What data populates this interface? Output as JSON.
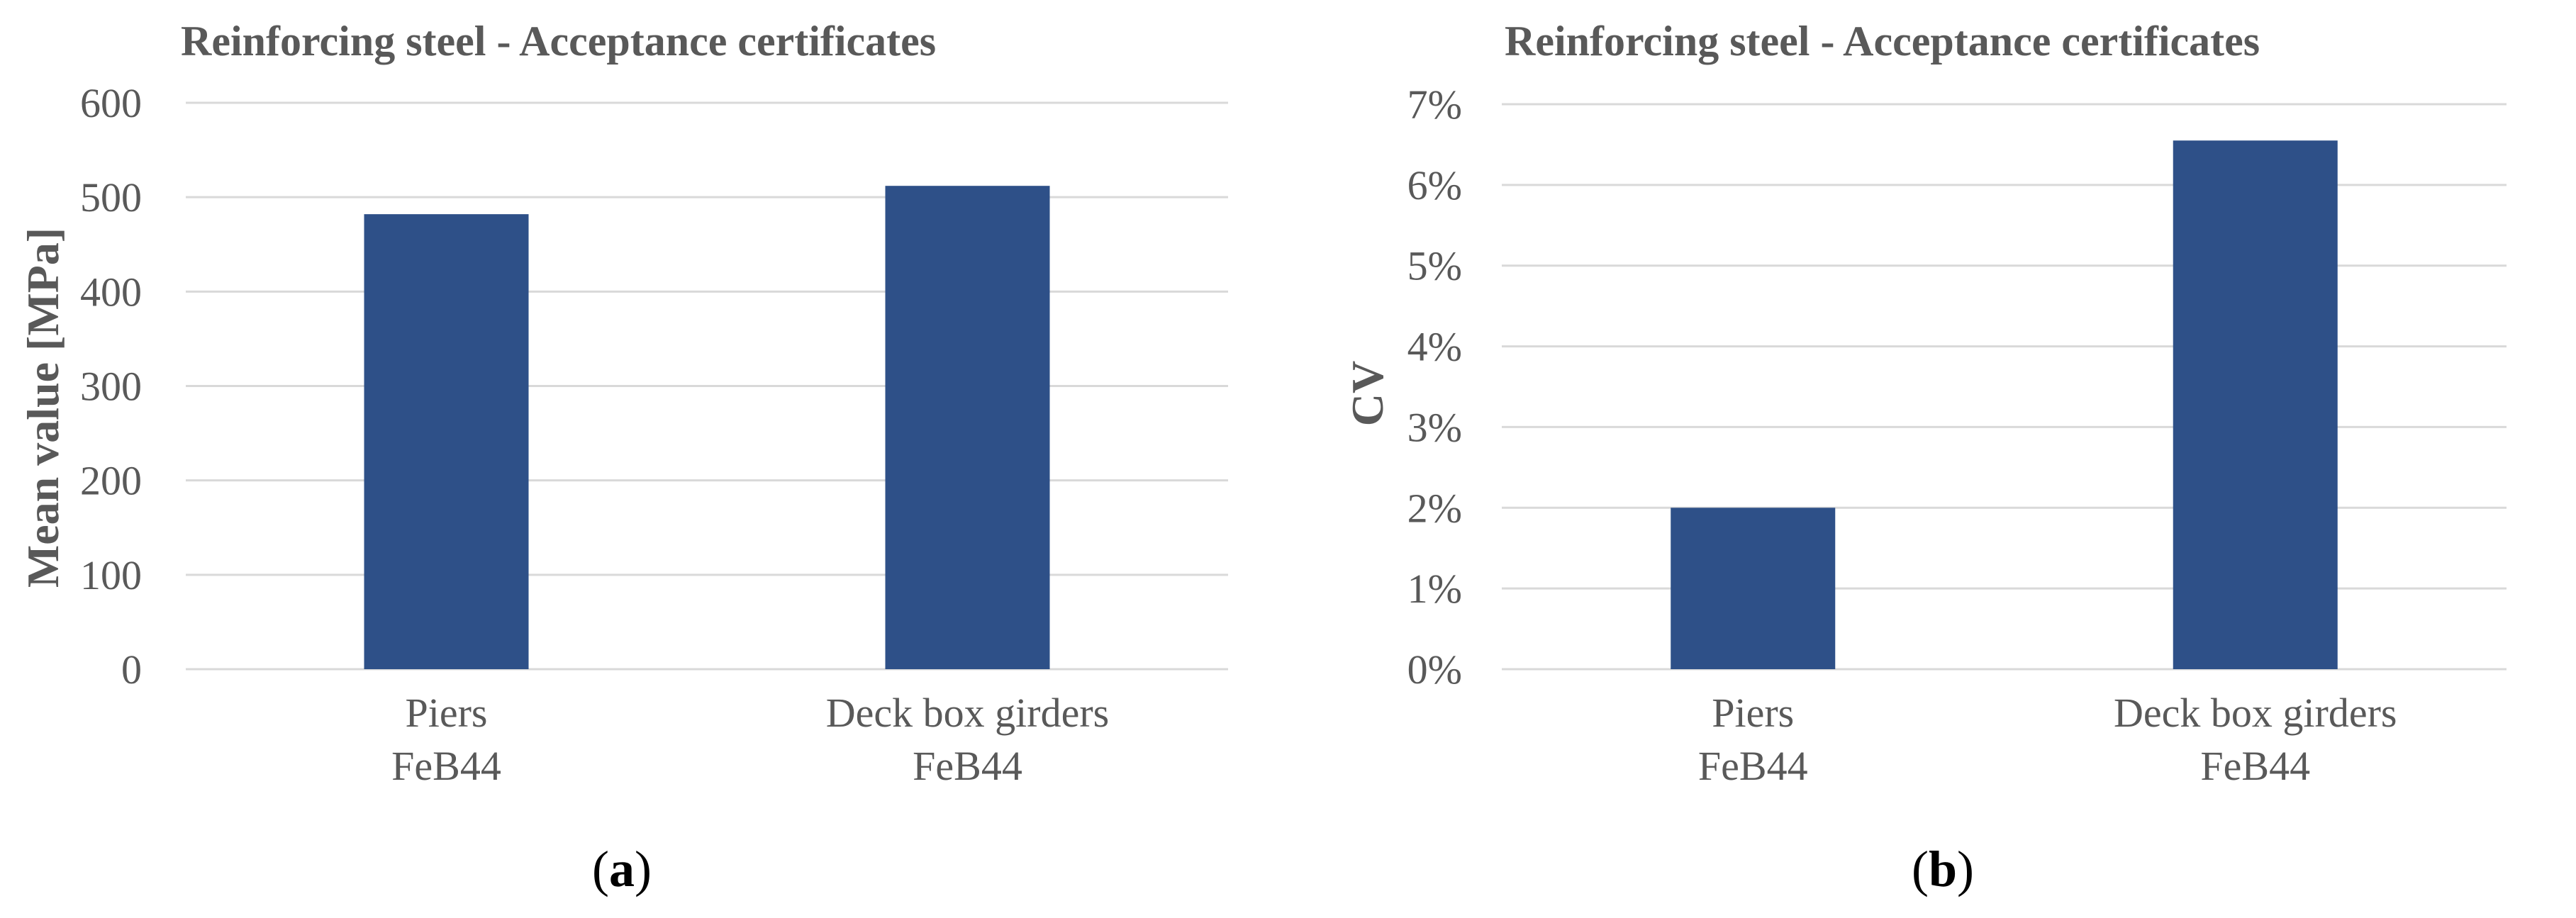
{
  "colors": {
    "bar": "#2e5088",
    "text": "#595959",
    "grid": "#d9d9d9"
  },
  "panels": [
    {
      "open": "(",
      "letter": "a",
      "close": ")"
    },
    {
      "open": "(",
      "letter": "b",
      "close": ")"
    }
  ],
  "chart_data": [
    {
      "type": "bar",
      "title": "Reinforcing steel - Acceptance certificates",
      "xlabel": "",
      "ylabel": "Mean value [MPa]",
      "categories": [
        [
          "Piers",
          "FeB44"
        ],
        [
          "Deck box girders",
          "FeB44"
        ]
      ],
      "values": [
        482,
        512
      ],
      "ylim": [
        0,
        600
      ],
      "yticks": [
        0,
        100,
        200,
        300,
        400,
        500,
        600
      ],
      "ytick_labels": [
        "0",
        "100",
        "200",
        "300",
        "400",
        "500",
        "600"
      ],
      "grid": true,
      "legend": "none"
    },
    {
      "type": "bar",
      "title": "Reinforcing steel - Acceptance certificates",
      "xlabel": "",
      "ylabel": "CV",
      "categories": [
        [
          "Piers",
          "FeB44"
        ],
        [
          "Deck box girders",
          "FeB44"
        ]
      ],
      "values": [
        0.02,
        0.0655
      ],
      "ylim": [
        0,
        0.07
      ],
      "yticks": [
        0,
        0.01,
        0.02,
        0.03,
        0.04,
        0.05,
        0.06,
        0.07
      ],
      "ytick_labels": [
        "0%",
        "1%",
        "2%",
        "3%",
        "4%",
        "5%",
        "6%",
        "7%"
      ],
      "grid": true,
      "legend": "none"
    }
  ]
}
